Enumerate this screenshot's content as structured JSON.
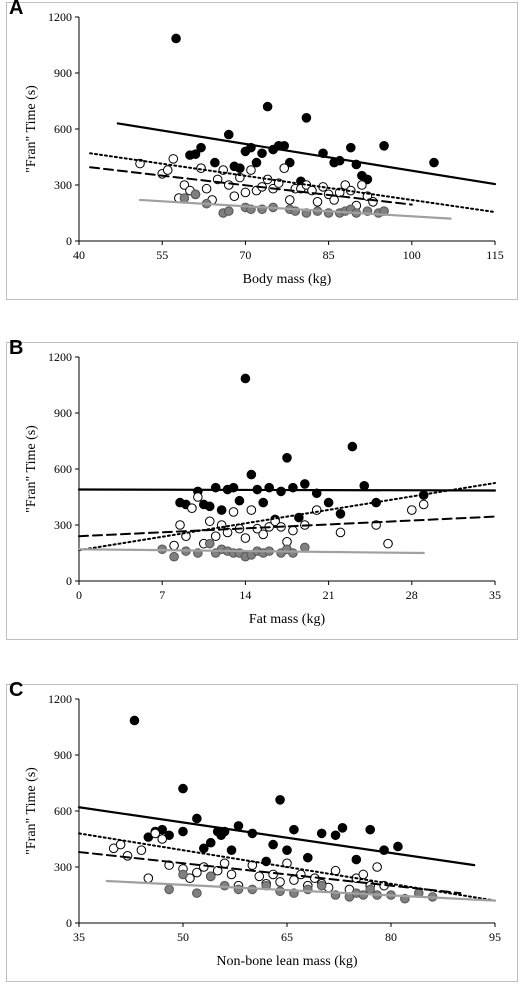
{
  "chart_data": [
    {
      "panel": "A",
      "type": "scatter",
      "xlabel": "Body mass (kg)",
      "ylabel": "\"Fran\" Time (s)",
      "xlim": [
        40,
        115
      ],
      "ylim": [
        0,
        1200
      ],
      "xticks": [
        "40",
        "55",
        "70",
        "85",
        "100",
        "115"
      ],
      "yticks": [
        "0",
        "300",
        "600",
        "900",
        "1200"
      ],
      "series": [
        {
          "marker": "filled-black",
          "color": "#000000",
          "x": [
            57.5,
            60,
            61,
            62,
            64.5,
            67,
            68,
            69,
            70,
            71,
            72,
            73,
            74,
            75,
            76,
            77,
            78,
            80,
            81,
            84,
            86,
            87,
            89,
            90,
            91,
            92,
            95,
            104
          ],
          "y": [
            1085,
            460,
            465,
            500,
            420,
            570,
            400,
            390,
            480,
            500,
            420,
            470,
            720,
            490,
            510,
            510,
            420,
            320,
            660,
            470,
            420,
            430,
            500,
            410,
            350,
            330,
            510,
            420
          ],
          "trend": {
            "style": "solid",
            "color": "#000000",
            "x": [
              47,
              115
            ],
            "y": [
              630,
              305
            ]
          }
        },
        {
          "marker": "open",
          "color": "#000000",
          "x": [
            51,
            55,
            56,
            57,
            58,
            59,
            60,
            61,
            62,
            63,
            64,
            65,
            66,
            67,
            68,
            69,
            70,
            71,
            72,
            73,
            74,
            75,
            76,
            77,
            78,
            79,
            80,
            81,
            82,
            83,
            84,
            85,
            86,
            87,
            88,
            89,
            90,
            91,
            92,
            93
          ],
          "y": [
            415,
            360,
            380,
            440,
            230,
            300,
            270,
            250,
            390,
            280,
            220,
            330,
            380,
            300,
            240,
            340,
            260,
            380,
            270,
            290,
            330,
            280,
            310,
            390,
            220,
            280,
            280,
            300,
            270,
            210,
            290,
            250,
            220,
            260,
            300,
            270,
            190,
            300,
            240,
            210
          ],
          "trend": {
            "style": "dotted",
            "color": "#000000",
            "x": [
              42,
              115
            ],
            "y": [
              470,
              155
            ]
          }
        },
        {
          "marker": "filled-gray",
          "color": "#808080",
          "x": [
            59,
            61,
            63,
            66,
            67,
            70,
            71,
            73,
            75,
            78,
            79,
            81,
            83,
            85,
            87,
            88,
            89,
            90,
            92,
            94,
            95
          ],
          "y": [
            230,
            250,
            200,
            150,
            160,
            180,
            170,
            170,
            180,
            170,
            160,
            150,
            160,
            150,
            150,
            160,
            170,
            150,
            160,
            150,
            160
          ],
          "trend": {
            "style": "solid",
            "color": "#a0a0a0",
            "x": [
              51,
              107
            ],
            "y": [
              220,
              120
            ]
          }
        }
      ],
      "extra_trends": [
        {
          "style": "dashed",
          "color": "#000000",
          "x": [
            42,
            100
          ],
          "y": [
            395,
            195
          ]
        }
      ]
    },
    {
      "panel": "B",
      "type": "scatter",
      "xlabel": "Fat mass (kg)",
      "ylabel": "\"Fran\" Time (s)",
      "xlim": [
        0,
        35
      ],
      "ylim": [
        0,
        1200
      ],
      "xticks": [
        "0",
        "7",
        "14",
        "21",
        "28",
        "35"
      ],
      "yticks": [
        "0",
        "300",
        "600",
        "900",
        "1200"
      ],
      "series": [
        {
          "marker": "filled-black",
          "color": "#000000",
          "x": [
            8.5,
            9,
            10,
            10.5,
            11,
            11.5,
            12,
            12.5,
            13,
            13.5,
            14,
            14.5,
            15,
            15.5,
            16,
            16.5,
            17,
            17.5,
            18,
            18.5,
            19,
            20,
            21,
            22,
            23,
            24,
            25,
            29
          ],
          "y": [
            420,
            410,
            480,
            410,
            400,
            500,
            380,
            490,
            500,
            430,
            1085,
            570,
            490,
            420,
            500,
            330,
            480,
            660,
            500,
            340,
            520,
            470,
            420,
            360,
            720,
            510,
            420,
            460
          ],
          "trend": {
            "style": "solid",
            "color": "#000000",
            "x": [
              0,
              35
            ],
            "y": [
              490,
              485
            ]
          }
        },
        {
          "marker": "open",
          "color": "#000000",
          "x": [
            8,
            8.5,
            9,
            9.5,
            10,
            10.5,
            11,
            11.5,
            12,
            12.5,
            13,
            13.5,
            14,
            14.5,
            15,
            15.5,
            16,
            16.5,
            17,
            17.5,
            18,
            19,
            20,
            22,
            25,
            26,
            28,
            29
          ],
          "y": [
            190,
            300,
            240,
            390,
            450,
            200,
            320,
            240,
            300,
            260,
            370,
            280,
            230,
            380,
            280,
            250,
            290,
            320,
            290,
            210,
            270,
            300,
            380,
            260,
            300,
            200,
            380,
            410
          ],
          "trend": {
            "style": "dotted",
            "color": "#000000",
            "x": [
              0,
              35
            ],
            "y": [
              165,
              525
            ]
          }
        },
        {
          "marker": "filled-gray",
          "color": "#808080",
          "x": [
            7,
            8,
            9,
            10,
            11,
            11.5,
            12,
            12.5,
            13,
            13.5,
            14,
            14.5,
            15,
            15.5,
            16,
            17,
            17.5,
            18,
            19
          ],
          "y": [
            170,
            130,
            160,
            150,
            200,
            150,
            170,
            160,
            150,
            150,
            130,
            140,
            160,
            150,
            160,
            150,
            170,
            150,
            180
          ],
          "trend": {
            "style": "solid",
            "color": "#a0a0a0",
            "x": [
              0,
              29
            ],
            "y": [
              170,
              150
            ]
          }
        }
      ],
      "extra_trends": [
        {
          "style": "dashed",
          "color": "#000000",
          "x": [
            0,
            35
          ],
          "y": [
            240,
            345
          ]
        }
      ]
    },
    {
      "panel": "C",
      "type": "scatter",
      "xlabel": "Non-bone lean mass (kg)",
      "ylabel": "\"Fran\" Time (s)",
      "xlim": [
        35,
        95
      ],
      "ylim": [
        0,
        1200
      ],
      "xticks": [
        "35",
        "50",
        "65",
        "80",
        "95"
      ],
      "yticks": [
        "0",
        "300",
        "600",
        "900",
        "1200"
      ],
      "series": [
        {
          "marker": "filled-black",
          "color": "#000000",
          "x": [
            43,
            45,
            46,
            47,
            48,
            50,
            50,
            52,
            53,
            54,
            55,
            55.5,
            56,
            57,
            58,
            60,
            62,
            63,
            64,
            65,
            66,
            68,
            70,
            72,
            73,
            75,
            77,
            79,
            81
          ],
          "y": [
            1085,
            460,
            490,
            500,
            470,
            490,
            720,
            560,
            400,
            430,
            490,
            470,
            490,
            390,
            520,
            480,
            330,
            420,
            660,
            390,
            500,
            350,
            480,
            470,
            510,
            340,
            500,
            390,
            410
          ],
          "trend": {
            "style": "solid",
            "color": "#000000",
            "x": [
              35,
              92
            ],
            "y": [
              620,
              310
            ]
          }
        },
        {
          "marker": "open",
          "color": "#000000",
          "x": [
            40,
            41,
            42,
            44,
            45,
            46,
            47,
            48,
            50,
            51,
            52,
            53,
            54,
            55,
            56,
            57,
            58,
            60,
            61,
            62,
            63,
            64,
            65,
            66,
            67,
            68,
            69,
            70,
            71,
            72,
            74,
            75,
            76,
            77,
            78,
            79
          ],
          "y": [
            400,
            420,
            360,
            390,
            240,
            480,
            450,
            310,
            290,
            240,
            270,
            300,
            250,
            280,
            320,
            260,
            200,
            310,
            250,
            210,
            260,
            220,
            320,
            230,
            260,
            200,
            240,
            210,
            190,
            280,
            180,
            240,
            260,
            200,
            300,
            200
          ],
          "trend": {
            "style": "dotted",
            "color": "#000000",
            "x": [
              35,
              95
            ],
            "y": [
              480,
              120
            ]
          }
        },
        {
          "marker": "filled-gray",
          "color": "#808080",
          "x": [
            48,
            50,
            52,
            54,
            56,
            58,
            60,
            62,
            64,
            66,
            68,
            70,
            72,
            74,
            75,
            76,
            77,
            78,
            80,
            82,
            84,
            86
          ],
          "y": [
            180,
            260,
            160,
            250,
            200,
            180,
            180,
            200,
            170,
            160,
            180,
            200,
            150,
            140,
            160,
            150,
            180,
            150,
            150,
            130,
            160,
            140
          ],
          "trend": {
            "style": "solid",
            "color": "#a0a0a0",
            "x": [
              39,
              95
            ],
            "y": [
              225,
              120
            ]
          }
        }
      ],
      "extra_trends": [
        {
          "style": "dashed",
          "color": "#000000",
          "x": [
            35,
            90
          ],
          "y": [
            380,
            160
          ]
        }
      ]
    }
  ]
}
